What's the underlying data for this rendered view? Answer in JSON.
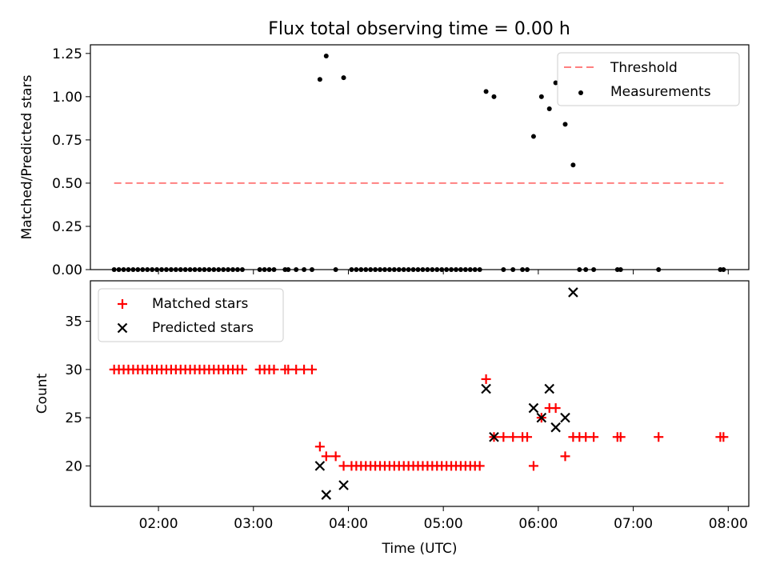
{
  "title": "Flux total observing time = 0.00 h",
  "colors": {
    "threshold": "#ff8080",
    "measurement": "#000000",
    "matched": "#ff0000",
    "predicted": "#000000"
  },
  "chart_data": [
    {
      "type": "scatter",
      "title": "Flux total observing time = 0.00 h",
      "xlabel": "",
      "ylabel": "Matched/Predicted stars",
      "xlim": [
        "01:17",
        "08:13"
      ],
      "ylim": [
        0,
        1.3
      ],
      "yticks": [
        0.0,
        0.25,
        0.5,
        0.75,
        1.0,
        1.25
      ],
      "ytick_labels": [
        "0.00",
        "0.25",
        "0.50",
        "0.75",
        "1.00",
        "1.25"
      ],
      "grid": false,
      "legend_position": "top-right",
      "threshold": {
        "name": "Threshold",
        "value": 0.5,
        "x_start": "01:32",
        "x_end": "07:57"
      },
      "series": [
        {
          "name": "Measurements",
          "points": [
            [
              "01:32",
              0.0
            ],
            [
              "01:35",
              0.0
            ],
            [
              "01:38",
              0.0
            ],
            [
              "01:41",
              0.0
            ],
            [
              "01:44",
              0.0
            ],
            [
              "01:47",
              0.0
            ],
            [
              "01:50",
              0.0
            ],
            [
              "01:53",
              0.0
            ],
            [
              "01:56",
              0.0
            ],
            [
              "01:59",
              0.0
            ],
            [
              "02:02",
              0.0
            ],
            [
              "02:05",
              0.0
            ],
            [
              "02:08",
              0.0
            ],
            [
              "02:11",
              0.0
            ],
            [
              "02:14",
              0.0
            ],
            [
              "02:17",
              0.0
            ],
            [
              "02:20",
              0.0
            ],
            [
              "02:23",
              0.0
            ],
            [
              "02:26",
              0.0
            ],
            [
              "02:29",
              0.0
            ],
            [
              "02:32",
              0.0
            ],
            [
              "02:35",
              0.0
            ],
            [
              "02:38",
              0.0
            ],
            [
              "02:41",
              0.0
            ],
            [
              "02:44",
              0.0
            ],
            [
              "02:47",
              0.0
            ],
            [
              "02:50",
              0.0
            ],
            [
              "02:53",
              0.0
            ],
            [
              "03:04",
              0.0
            ],
            [
              "03:07",
              0.0
            ],
            [
              "03:10",
              0.0
            ],
            [
              "03:13",
              0.0
            ],
            [
              "03:20",
              0.0
            ],
            [
              "03:22",
              0.0
            ],
            [
              "03:27",
              0.0
            ],
            [
              "03:32",
              0.0
            ],
            [
              "03:37",
              0.0
            ],
            [
              "03:42",
              1.1
            ],
            [
              "03:46",
              1.235
            ],
            [
              "03:52",
              0.0
            ],
            [
              "03:57",
              1.11
            ],
            [
              "04:02",
              0.0
            ],
            [
              "04:05",
              0.0
            ],
            [
              "04:08",
              0.0
            ],
            [
              "04:11",
              0.0
            ],
            [
              "04:14",
              0.0
            ],
            [
              "04:17",
              0.0
            ],
            [
              "04:20",
              0.0
            ],
            [
              "04:23",
              0.0
            ],
            [
              "04:26",
              0.0
            ],
            [
              "04:29",
              0.0
            ],
            [
              "04:32",
              0.0
            ],
            [
              "04:35",
              0.0
            ],
            [
              "04:38",
              0.0
            ],
            [
              "04:41",
              0.0
            ],
            [
              "04:44",
              0.0
            ],
            [
              "04:47",
              0.0
            ],
            [
              "04:50",
              0.0
            ],
            [
              "04:53",
              0.0
            ],
            [
              "04:56",
              0.0
            ],
            [
              "04:59",
              0.0
            ],
            [
              "05:02",
              0.0
            ],
            [
              "05:05",
              0.0
            ],
            [
              "05:08",
              0.0
            ],
            [
              "05:11",
              0.0
            ],
            [
              "05:14",
              0.0
            ],
            [
              "05:17",
              0.0
            ],
            [
              "05:20",
              0.0
            ],
            [
              "05:23",
              0.0
            ],
            [
              "05:27",
              1.03
            ],
            [
              "05:32",
              1.0
            ],
            [
              "05:38",
              0.0
            ],
            [
              "05:44",
              0.0
            ],
            [
              "05:50",
              0.0
            ],
            [
              "05:53",
              0.0
            ],
            [
              "05:57",
              0.77
            ],
            [
              "06:02",
              1.0
            ],
            [
              "06:07",
              0.93
            ],
            [
              "06:11",
              1.08
            ],
            [
              "06:17",
              0.84
            ],
            [
              "06:22",
              0.605
            ],
            [
              "06:26",
              0.0
            ],
            [
              "06:30",
              0.0
            ],
            [
              "06:35",
              0.0
            ],
            [
              "06:50",
              0.0
            ],
            [
              "06:52",
              0.0
            ],
            [
              "07:16",
              0.0
            ],
            [
              "07:55",
              0.0
            ],
            [
              "07:57",
              0.0
            ]
          ]
        }
      ]
    },
    {
      "type": "scatter",
      "title": "",
      "xlabel": "Time (UTC)",
      "ylabel": "Count",
      "xlim": [
        "01:17",
        "08:13"
      ],
      "ylim": [
        15.8,
        39.2
      ],
      "yticks": [
        20,
        25,
        30,
        35
      ],
      "ytick_labels": [
        "20",
        "25",
        "30",
        "35"
      ],
      "xticks": [
        "02:00",
        "03:00",
        "04:00",
        "05:00",
        "06:00",
        "07:00",
        "08:00"
      ],
      "xtick_labels": [
        "02:00",
        "03:00",
        "04:00",
        "05:00",
        "06:00",
        "07:00",
        "08:00"
      ],
      "grid": false,
      "legend_position": "top-left",
      "series": [
        {
          "name": "Matched stars",
          "points": [
            [
              "01:32",
              30
            ],
            [
              "01:35",
              30
            ],
            [
              "01:38",
              30
            ],
            [
              "01:41",
              30
            ],
            [
              "01:44",
              30
            ],
            [
              "01:47",
              30
            ],
            [
              "01:50",
              30
            ],
            [
              "01:53",
              30
            ],
            [
              "01:56",
              30
            ],
            [
              "01:59",
              30
            ],
            [
              "02:02",
              30
            ],
            [
              "02:05",
              30
            ],
            [
              "02:08",
              30
            ],
            [
              "02:11",
              30
            ],
            [
              "02:14",
              30
            ],
            [
              "02:17",
              30
            ],
            [
              "02:20",
              30
            ],
            [
              "02:23",
              30
            ],
            [
              "02:26",
              30
            ],
            [
              "02:29",
              30
            ],
            [
              "02:32",
              30
            ],
            [
              "02:35",
              30
            ],
            [
              "02:38",
              30
            ],
            [
              "02:41",
              30
            ],
            [
              "02:44",
              30
            ],
            [
              "02:47",
              30
            ],
            [
              "02:50",
              30
            ],
            [
              "02:53",
              30
            ],
            [
              "03:04",
              30
            ],
            [
              "03:07",
              30
            ],
            [
              "03:10",
              30
            ],
            [
              "03:13",
              30
            ],
            [
              "03:20",
              30
            ],
            [
              "03:22",
              30
            ],
            [
              "03:27",
              30
            ],
            [
              "03:32",
              30
            ],
            [
              "03:37",
              30
            ],
            [
              "03:42",
              22
            ],
            [
              "03:46",
              21
            ],
            [
              "03:52",
              21
            ],
            [
              "03:57",
              20
            ],
            [
              "04:02",
              20
            ],
            [
              "04:05",
              20
            ],
            [
              "04:08",
              20
            ],
            [
              "04:11",
              20
            ],
            [
              "04:14",
              20
            ],
            [
              "04:17",
              20
            ],
            [
              "04:20",
              20
            ],
            [
              "04:23",
              20
            ],
            [
              "04:26",
              20
            ],
            [
              "04:29",
              20
            ],
            [
              "04:32",
              20
            ],
            [
              "04:35",
              20
            ],
            [
              "04:38",
              20
            ],
            [
              "04:41",
              20
            ],
            [
              "04:44",
              20
            ],
            [
              "04:47",
              20
            ],
            [
              "04:50",
              20
            ],
            [
              "04:53",
              20
            ],
            [
              "04:56",
              20
            ],
            [
              "04:59",
              20
            ],
            [
              "05:02",
              20
            ],
            [
              "05:05",
              20
            ],
            [
              "05:08",
              20
            ],
            [
              "05:11",
              20
            ],
            [
              "05:14",
              20
            ],
            [
              "05:17",
              20
            ],
            [
              "05:20",
              20
            ],
            [
              "05:23",
              20
            ],
            [
              "05:27",
              29
            ],
            [
              "05:32",
              23
            ],
            [
              "05:38",
              23
            ],
            [
              "05:44",
              23
            ],
            [
              "05:50",
              23
            ],
            [
              "05:53",
              23
            ],
            [
              "05:57",
              20
            ],
            [
              "06:02",
              25
            ],
            [
              "06:07",
              26
            ],
            [
              "06:11",
              26
            ],
            [
              "06:17",
              21
            ],
            [
              "06:22",
              23
            ],
            [
              "06:26",
              23
            ],
            [
              "06:30",
              23
            ],
            [
              "06:35",
              23
            ],
            [
              "06:50",
              23
            ],
            [
              "06:52",
              23
            ],
            [
              "07:16",
              23
            ],
            [
              "07:55",
              23
            ],
            [
              "07:57",
              23
            ]
          ]
        },
        {
          "name": "Predicted stars",
          "points": [
            [
              "03:42",
              20
            ],
            [
              "03:46",
              17
            ],
            [
              "03:57",
              18
            ],
            [
              "05:27",
              28
            ],
            [
              "05:32",
              23
            ],
            [
              "05:57",
              26
            ],
            [
              "06:02",
              25
            ],
            [
              "06:07",
              28
            ],
            [
              "06:11",
              24
            ],
            [
              "06:17",
              25
            ],
            [
              "06:22",
              38
            ]
          ]
        }
      ]
    }
  ]
}
